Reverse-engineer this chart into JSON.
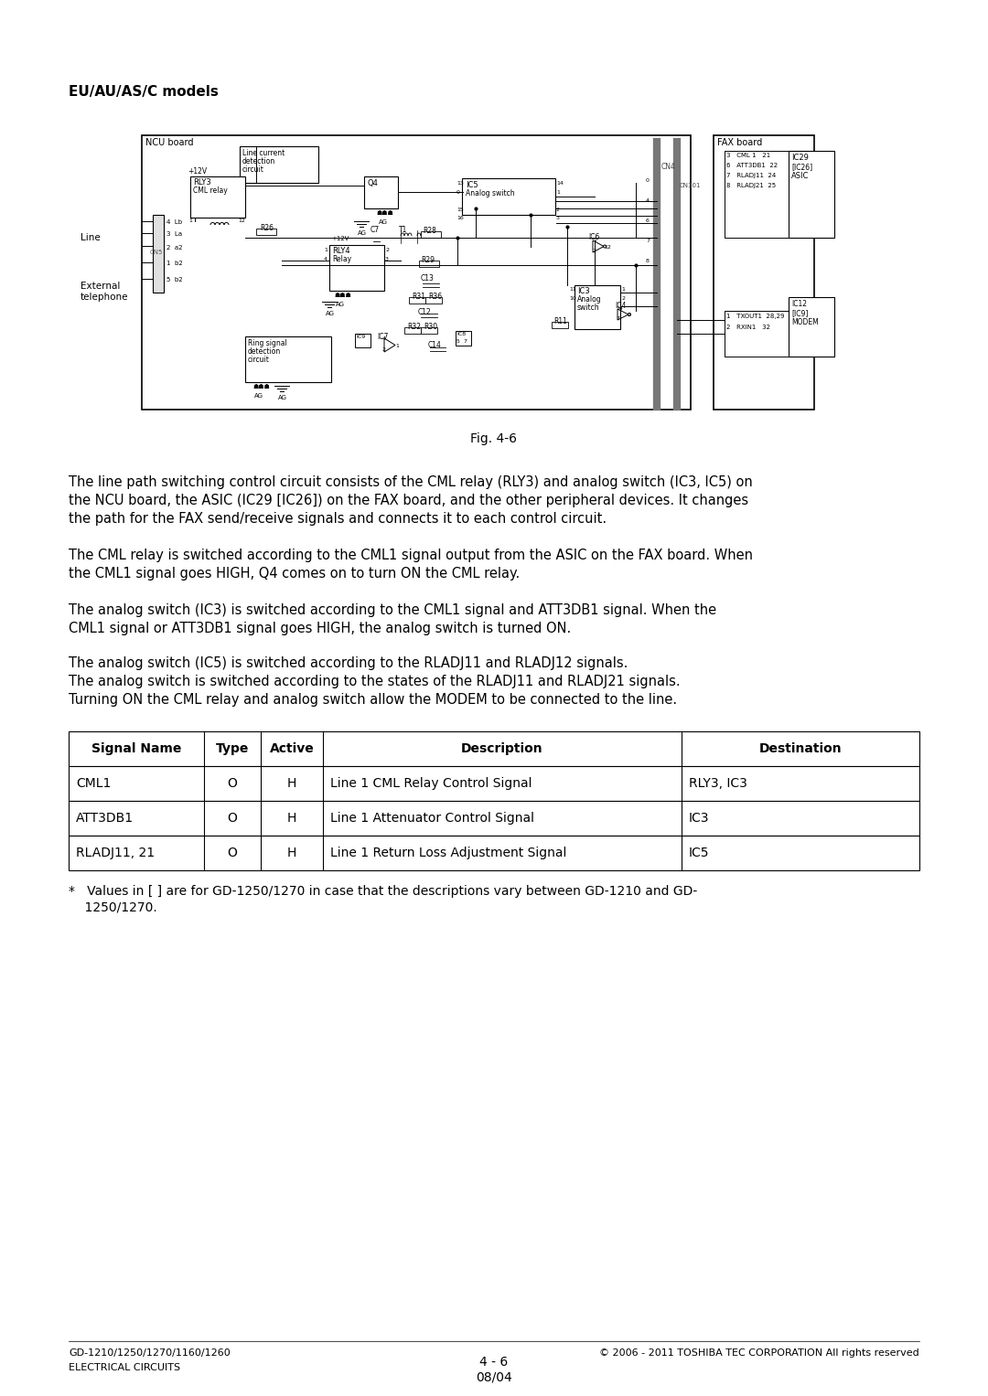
{
  "title_bold": "EU/AU/AS/C models",
  "fig_caption": "Fig. 4-6",
  "paragraph1": "The line path switching control circuit consists of the CML relay (RLY3) and analog switch (IC3, IC5) on\nthe NCU board, the ASIC (IC29 [IC26]) on the FAX board, and the other peripheral devices. It changes\nthe path for the FAX send/receive signals and connects it to each control circuit.",
  "paragraph2": "The CML relay is switched according to the CML1 signal output from the ASIC on the FAX board. When\nthe CML1 signal goes HIGH, Q4 comes on to turn ON the CML relay.",
  "paragraph3": "The analog switch (IC3) is switched according to the CML1 signal and ATT3DB1 signal. When the\nCML1 signal or ATT3DB1 signal goes HIGH, the analog switch is turned ON.",
  "paragraph4": "The analog switch (IC5) is switched according to the RLADJ11 and RLADJ12 signals.\nThe analog switch is switched according to the states of the RLADJ11 and RLADJ21 signals.\nTurning ON the CML relay and analog switch allow the MODEM to be connected to the line.",
  "table_headers": [
    "Signal Name",
    "Type",
    "Active",
    "Description",
    "Destination"
  ],
  "table_rows": [
    [
      "CML1",
      "O",
      "H",
      "Line 1 CML Relay Control Signal",
      "RLY3, IC3"
    ],
    [
      "ATT3DB1",
      "O",
      "H",
      "Line 1 Attenuator Control Signal",
      "IC3"
    ],
    [
      "RLADJ11, 21",
      "O",
      "H",
      "Line 1 Return Loss Adjustment Signal",
      "IC5"
    ]
  ],
  "footnote_line1": "*   Values in [ ] are for GD-1250/1270 in case that the descriptions vary between GD-1210 and GD-",
  "footnote_line2": "    1250/1270.",
  "footer_left_line1": "GD-1210/1250/1270/1160/1260",
  "footer_left_line2": "ELECTRICAL CIRCUITS",
  "footer_right": "© 2006 - 2011 TOSHIBA TEC CORPORATION All rights reserved",
  "footer_center_line1": "4 - 6",
  "footer_center_line2": "08/04",
  "bg_color": "#ffffff",
  "text_color": "#000000"
}
